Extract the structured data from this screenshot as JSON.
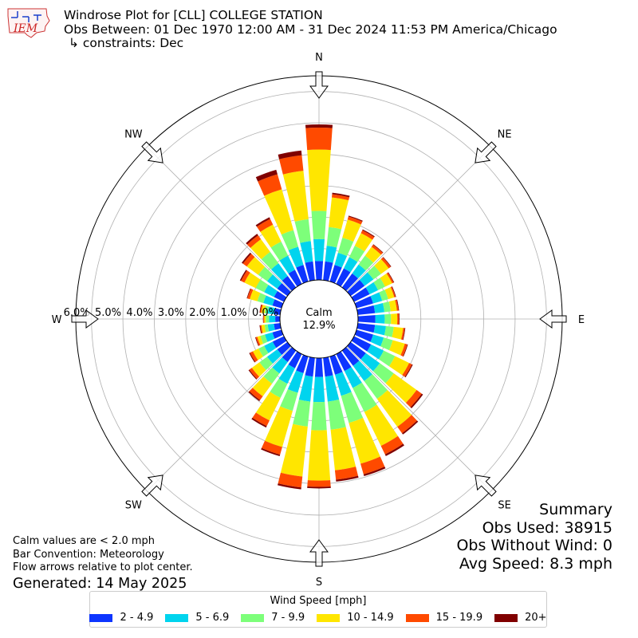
{
  "logo": {
    "text": "IEM"
  },
  "header": {
    "title": "Windrose Plot for [CLL] COLLEGE STATION",
    "period": "Obs Between: 01 Dec 1970 12:00 AM - 31 Dec 2024 11:53 PM America/Chicago",
    "constraints": "↳ constraints: Dec"
  },
  "notes": {
    "calm_note": "Calm values are < 2.0 mph",
    "bar_convention": "Bar Convention: Meteorology",
    "flow_note": "Flow arrows relative to plot center.",
    "generated": "Generated: 14 May 2025"
  },
  "summary": {
    "title": "Summary",
    "obs_used": "Obs Used: 38915",
    "obs_without_wind": "Obs Without Wind: 0",
    "avg_speed": "Avg Speed: 8.3 mph"
  },
  "legend": {
    "title": "Wind Speed [mph]",
    "items": [
      {
        "label": "2 - 4.9",
        "color": "#0d35ff"
      },
      {
        "label": "5 - 6.9",
        "color": "#00d4ee"
      },
      {
        "label": "7 - 9.9",
        "color": "#7dff7a"
      },
      {
        "label": "10 - 14.9",
        "color": "#ffe600"
      },
      {
        "label": "15 - 19.9",
        "color": "#ff4a00"
      },
      {
        "label": "20+",
        "color": "#800000"
      }
    ]
  },
  "chart_data": {
    "type": "windrose",
    "direction_labels": [
      "N",
      "NE",
      "E",
      "SE",
      "S",
      "SW",
      "W",
      "NW"
    ],
    "radial_tick_labels": [
      "0.0%",
      "1.0%",
      "2.0%",
      "3.0%",
      "4.0%",
      "5.0%",
      "6.0%"
    ],
    "rlim": [
      0,
      6.5
    ],
    "calm_label": "Calm",
    "calm_value": "12.9%",
    "sector_width_deg": 10,
    "directions_deg": [
      0,
      10,
      20,
      30,
      40,
      50,
      60,
      70,
      80,
      90,
      100,
      110,
      120,
      130,
      140,
      150,
      160,
      170,
      180,
      190,
      200,
      210,
      220,
      230,
      240,
      250,
      260,
      270,
      280,
      290,
      300,
      310,
      320,
      330,
      340,
      350
    ],
    "series": [
      {
        "name": "2 - 4.9",
        "color": "#0d35ff",
        "values": [
          0.6,
          0.6,
          0.55,
          0.55,
          0.55,
          0.55,
          0.55,
          0.55,
          0.55,
          0.55,
          0.55,
          0.55,
          0.6,
          0.6,
          0.6,
          0.6,
          0.6,
          0.6,
          0.6,
          0.6,
          0.55,
          0.5,
          0.45,
          0.4,
          0.4,
          0.3,
          0.2,
          0.15,
          0.2,
          0.3,
          0.35,
          0.4,
          0.45,
          0.5,
          0.55,
          0.6
        ]
      },
      {
        "name": "5 - 6.9",
        "color": "#00d4ee",
        "values": [
          0.7,
          0.5,
          0.4,
          0.4,
          0.35,
          0.35,
          0.3,
          0.3,
          0.3,
          0.3,
          0.35,
          0.35,
          0.45,
          0.55,
          0.6,
          0.6,
          0.7,
          0.8,
          0.8,
          0.8,
          0.65,
          0.55,
          0.45,
          0.4,
          0.3,
          0.25,
          0.2,
          0.2,
          0.2,
          0.3,
          0.35,
          0.4,
          0.5,
          0.5,
          0.6,
          0.65
        ]
      },
      {
        "name": "7 - 9.9",
        "color": "#7dff7a",
        "values": [
          0.9,
          0.6,
          0.5,
          0.4,
          0.35,
          0.3,
          0.25,
          0.2,
          0.2,
          0.2,
          0.25,
          0.3,
          0.4,
          0.55,
          0.7,
          0.85,
          0.9,
          0.9,
          0.9,
          0.8,
          0.6,
          0.5,
          0.4,
          0.3,
          0.2,
          0.15,
          0.1,
          0.1,
          0.1,
          0.2,
          0.3,
          0.35,
          0.45,
          0.5,
          0.55,
          0.7
        ]
      },
      {
        "name": "10 - 14.9",
        "color": "#ffe600",
        "values": [
          1.95,
          0.95,
          0.6,
          0.45,
          0.35,
          0.3,
          0.25,
          0.2,
          0.2,
          0.2,
          0.3,
          0.4,
          0.5,
          0.9,
          1.1,
          1.2,
          1.35,
          1.3,
          1.6,
          1.6,
          1.2,
          0.8,
          0.5,
          0.3,
          0.2,
          0.1,
          0.1,
          0.05,
          0.1,
          0.25,
          0.4,
          0.45,
          0.5,
          0.6,
          1.35,
          1.55
        ]
      },
      {
        "name": "15 - 19.9",
        "color": "#ff4a00",
        "values": [
          0.7,
          0.1,
          0.1,
          0.1,
          0.08,
          0.08,
          0.05,
          0.04,
          0.05,
          0.05,
          0.05,
          0.08,
          0.1,
          0.2,
          0.25,
          0.3,
          0.35,
          0.3,
          0.2,
          0.35,
          0.25,
          0.2,
          0.15,
          0.1,
          0.1,
          0.05,
          0.04,
          0.03,
          0.04,
          0.08,
          0.12,
          0.15,
          0.15,
          0.2,
          0.5,
          0.5
        ]
      },
      {
        "name": "20+",
        "color": "#800000",
        "values": [
          0.1,
          0.05,
          0.03,
          0.03,
          0.02,
          0.02,
          0.02,
          0.02,
          0.02,
          0.02,
          0.02,
          0.02,
          0.03,
          0.05,
          0.05,
          0.06,
          0.06,
          0.06,
          0.05,
          0.06,
          0.05,
          0.05,
          0.04,
          0.03,
          0.03,
          0.02,
          0.02,
          0.01,
          0.02,
          0.02,
          0.04,
          0.05,
          0.06,
          0.06,
          0.15,
          0.15
        ]
      }
    ]
  }
}
